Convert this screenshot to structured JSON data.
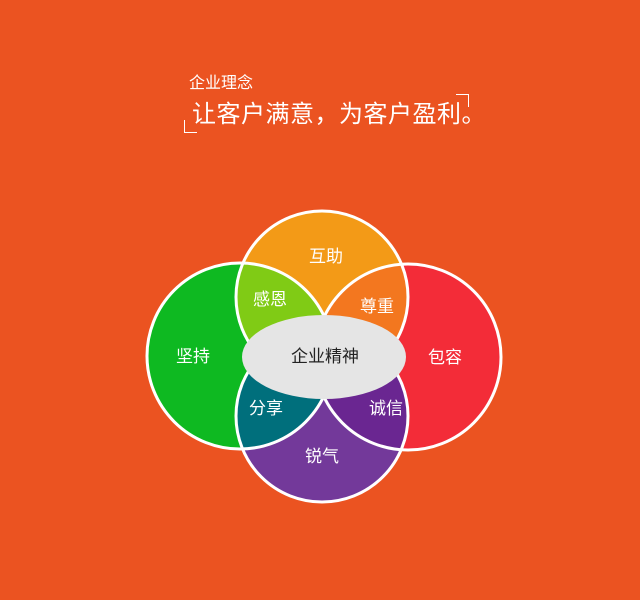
{
  "header": {
    "subtitle": "企业理念",
    "title": "让客户满意，为客户盈利。"
  },
  "diagram": {
    "center_label": "企业精神",
    "outer_labels": {
      "top": "互助",
      "left": "坚持",
      "right": "包容",
      "bottom": "锐气"
    },
    "overlap_labels": {
      "top_left": "感恩",
      "top_right": "尊重",
      "bottom_left": "分享",
      "bottom_right": "诚信"
    },
    "colors": {
      "background": "#EB5321",
      "top": "#F39A17",
      "left": "#0EB921",
      "right": "#F32C38",
      "bottom": "#73399A",
      "top_left": "#80CB15",
      "top_right": "#F3771F",
      "bottom_left": "#006F7C",
      "bottom_right": "#6A2691",
      "center": "#E5E5E5",
      "stroke": "#FFFFFF"
    }
  }
}
